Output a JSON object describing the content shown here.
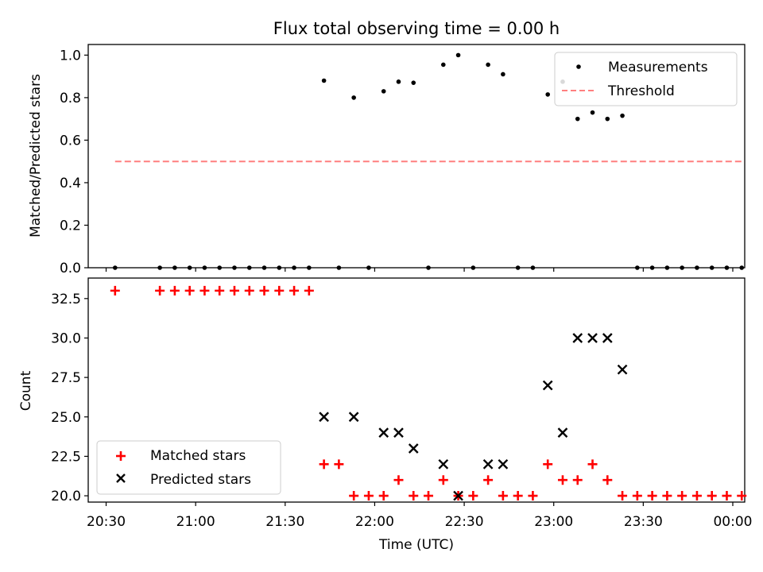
{
  "figure": {
    "title": "Flux total observing time = 0.00 h",
    "xlabel": "Time (UTC)",
    "xtick_labels": [
      "20:30",
      "21:00",
      "21:30",
      "22:00",
      "22:30",
      "23:00",
      "23:30",
      "00:00"
    ]
  },
  "chart_data": [
    {
      "type": "scatter",
      "ylabel": "Matched/Predicted stars",
      "ylim": [
        0,
        1.05
      ],
      "yticks": [
        "0.0",
        "0.2",
        "0.4",
        "0.6",
        "0.8",
        "1.0"
      ],
      "legend_position": "top-right",
      "series": [
        {
          "name": "Measurements",
          "color": "#000000",
          "marker": "dot",
          "x": [
            "20:33",
            "20:48",
            "20:53",
            "20:58",
            "21:03",
            "21:08",
            "21:13",
            "21:18",
            "21:23",
            "21:28",
            "21:33",
            "21:38",
            "21:43",
            "21:48",
            "21:53",
            "21:58",
            "22:03",
            "22:08",
            "22:13",
            "22:18",
            "22:23",
            "22:28",
            "22:33",
            "22:38",
            "22:43",
            "22:48",
            "22:53",
            "22:58",
            "23:03",
            "23:08",
            "23:13",
            "23:18",
            "23:23",
            "23:28",
            "23:33",
            "23:38",
            "23:43",
            "23:48",
            "23:53",
            "23:58",
            "00:03"
          ],
          "y": [
            0,
            0,
            0,
            0,
            0,
            0,
            0,
            0,
            0,
            0,
            0,
            0,
            0.88,
            0,
            0.8,
            0,
            0.83,
            0.875,
            0.87,
            0,
            0.955,
            1.0,
            0,
            0.955,
            0.91,
            0,
            0,
            0.815,
            0.875,
            0.7,
            0.73,
            0.7,
            0.715,
            0,
            0,
            0,
            0,
            0,
            0,
            0,
            0
          ]
        },
        {
          "name": "Threshold",
          "color": "#ff7f7f",
          "style": "dashed",
          "x": [
            "20:33",
            "00:03"
          ],
          "y": [
            0.5,
            0.5
          ]
        }
      ]
    },
    {
      "type": "scatter",
      "ylabel": "Count",
      "ylim": [
        19.6,
        33.8
      ],
      "yticks": [
        "20.0",
        "22.5",
        "25.0",
        "27.5",
        "30.0",
        "32.5"
      ],
      "legend_position": "bottom-left",
      "series": [
        {
          "name": "Matched stars",
          "color": "#ff0000",
          "marker": "plus",
          "x": [
            "20:33",
            "20:48",
            "20:53",
            "20:58",
            "21:03",
            "21:08",
            "21:13",
            "21:18",
            "21:23",
            "21:28",
            "21:33",
            "21:38",
            "21:43",
            "21:48",
            "21:53",
            "21:58",
            "22:03",
            "22:08",
            "22:13",
            "22:18",
            "22:23",
            "22:28",
            "22:33",
            "22:38",
            "22:43",
            "22:48",
            "22:53",
            "22:58",
            "23:03",
            "23:08",
            "23:13",
            "23:18",
            "23:23",
            "23:28",
            "23:33",
            "23:38",
            "23:43",
            "23:48",
            "23:53",
            "23:58",
            "00:03"
          ],
          "y": [
            33,
            33,
            33,
            33,
            33,
            33,
            33,
            33,
            33,
            33,
            33,
            33,
            22,
            22,
            20,
            20,
            20,
            21,
            20,
            20,
            21,
            20,
            20,
            21,
            20,
            20,
            20,
            22,
            21,
            21,
            22,
            21,
            20,
            20,
            20,
            20,
            20,
            20,
            20,
            20,
            20
          ]
        },
        {
          "name": "Predicted stars",
          "color": "#000000",
          "marker": "x",
          "x": [
            "21:43",
            "21:53",
            "22:03",
            "22:08",
            "22:13",
            "22:23",
            "22:28",
            "22:38",
            "22:43",
            "22:58",
            "23:03",
            "23:08",
            "23:13",
            "23:18",
            "23:23"
          ],
          "y": [
            25,
            25,
            24,
            24,
            23,
            22,
            20,
            22,
            22,
            27,
            24,
            30,
            30,
            30,
            28
          ]
        }
      ]
    }
  ]
}
